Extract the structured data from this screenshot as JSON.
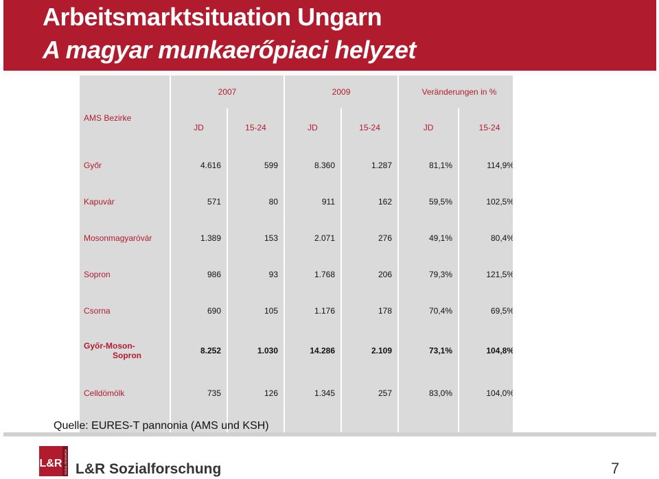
{
  "header": {
    "title_line1": "Arbeitsmarktsituation Ungarn",
    "title_line2": "A magyar munkaerőpiaci helyzet"
  },
  "table": {
    "corner_label": "AMS Bezirke",
    "groups": [
      "2007",
      "2009",
      "Veränderungen in %"
    ],
    "subheaders": [
      "JD",
      "15-24",
      "JD",
      "15-24",
      "JD",
      "15-24"
    ],
    "rows": [
      {
        "name": "Győr",
        "values": [
          "4.616",
          "599",
          "8.360",
          "1.287",
          "81,1%",
          "114,9%"
        ]
      },
      {
        "name": "Kapuvár",
        "values": [
          "571",
          "80",
          "911",
          "162",
          "59,5%",
          "102,5%"
        ]
      },
      {
        "name": "Mosonmagyaróvár",
        "values": [
          "1.389",
          "153",
          "2.071",
          "276",
          "49,1%",
          "80,4%"
        ]
      },
      {
        "name": "Sopron",
        "values": [
          "986",
          "93",
          "1.768",
          "206",
          "79,3%",
          "121,5%"
        ]
      },
      {
        "name": "Csorna",
        "values": [
          "690",
          "105",
          "1.176",
          "178",
          "70,4%",
          "69,5%"
        ]
      },
      {
        "name_line1": "Győr-Moson-",
        "name_line2": "Sopron",
        "values": [
          "8.252",
          "1.030",
          "14.286",
          "2.109",
          "73,1%",
          "104,8%"
        ]
      },
      {
        "name": "Celldömölk",
        "values": [
          "735",
          "126",
          "1.345",
          "257",
          "83,0%",
          "104,0%"
        ]
      }
    ]
  },
  "footer": {
    "source": "Quelle: EURES-T pannonia (AMS und KSH)",
    "company": "L&R Sozialforschung",
    "page_number": "7",
    "logo_text": "L&R",
    "logo_side_text": "SOZIAL RESEARCH"
  }
}
